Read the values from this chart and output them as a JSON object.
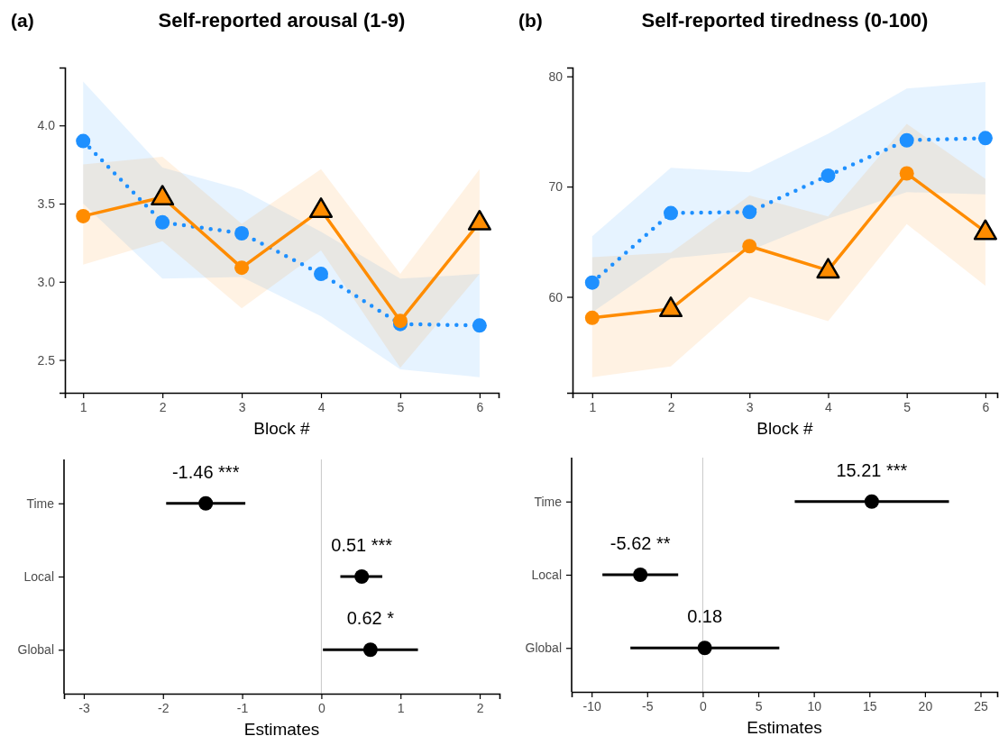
{
  "chart_data": [
    {
      "type": "line",
      "title": "Self-reported arousal (1-9)",
      "annotations": [
        "(a)"
      ],
      "xlabel": "Block #",
      "xlim": [
        0.77,
        6.24
      ],
      "xticks": [
        1,
        2,
        3,
        4,
        5,
        6
      ],
      "ylim": [
        2.29,
        4.37
      ],
      "yticks": [
        2.5,
        {
          "value": 3,
          "label": "3.0"
        },
        3.5,
        {
          "value": 4,
          "label": "4.0"
        }
      ],
      "series": [
        {
          "color": "#1e90ff",
          "x": [
            1,
            2,
            3,
            4,
            5,
            6
          ],
          "values": [
            3.9,
            3.38,
            3.31,
            3.05,
            2.73,
            2.72
          ],
          "lower": [
            3.5,
            3.02,
            3.03,
            2.78,
            2.44,
            2.39
          ],
          "upper": [
            4.28,
            3.73,
            3.59,
            3.32,
            3.02,
            3.05
          ],
          "marker": "circle",
          "line_style": "dotted"
        },
        {
          "color": "#ff8c00",
          "x": [
            1,
            2,
            3,
            4,
            5,
            6
          ],
          "values": [
            3.42,
            3.54,
            3.09,
            3.46,
            2.75,
            3.38
          ],
          "lower": [
            3.11,
            3.26,
            2.83,
            3.2,
            2.45,
            3.05
          ],
          "upper": [
            3.75,
            3.8,
            3.37,
            3.72,
            3.05,
            3.72
          ],
          "marker": "none",
          "line_style": "solid"
        },
        {
          "type": "scatter",
          "color": "#ff8c00",
          "x": [
            1,
            3,
            5
          ],
          "values": [
            3.42,
            3.09,
            2.75
          ],
          "marker": "circle"
        },
        {
          "type": "scatter",
          "color": "#ff8c00",
          "x": [
            2,
            4,
            6
          ],
          "values": [
            3.54,
            3.46,
            3.38
          ],
          "marker": "triangle"
        }
      ]
    },
    {
      "type": "line",
      "title": "Self-reported tiredness (0-100)",
      "annotations": [
        "(b)"
      ],
      "xlabel": "Block #",
      "xlim": [
        0.75,
        6.15
      ],
      "xticks": [
        1,
        2,
        3,
        4,
        5,
        6
      ],
      "ylim": [
        51.3,
        80.8
      ],
      "yticks": [
        60,
        70,
        80
      ],
      "series": [
        {
          "color": "#1e90ff",
          "x": [
            1,
            2,
            3,
            4,
            5,
            6
          ],
          "values": [
            61.3,
            67.6,
            67.7,
            71.0,
            74.2,
            74.4
          ],
          "lower": [
            58.6,
            63.5,
            64.2,
            67.1,
            69.5,
            69.3
          ],
          "upper": [
            65.5,
            71.7,
            71.3,
            74.8,
            78.9,
            79.5
          ],
          "marker": "circle",
          "line_style": "dotted"
        },
        {
          "color": "#ff8c00",
          "x": [
            1,
            2,
            3,
            4,
            5,
            6
          ],
          "values": [
            58.1,
            58.9,
            64.6,
            62.4,
            71.2,
            65.9
          ],
          "lower": [
            52.7,
            53.7,
            60.0,
            57.8,
            66.6,
            61.0
          ],
          "upper": [
            63.6,
            64.0,
            69.2,
            67.3,
            75.7,
            70.7
          ],
          "marker": "none",
          "line_style": "solid"
        },
        {
          "type": "scatter",
          "color": "#ff8c00",
          "x": [
            1,
            3,
            5
          ],
          "values": [
            58.1,
            64.6,
            71.2
          ],
          "marker": "circle"
        },
        {
          "type": "scatter",
          "color": "#ff8c00",
          "x": [
            2,
            4,
            6
          ],
          "values": [
            58.9,
            62.4,
            65.9
          ],
          "marker": "triangle"
        }
      ]
    },
    {
      "type": "scatter",
      "orientation": "horizontal",
      "xlabel": "Estimates",
      "categories": [
        "Time",
        "Local",
        "Global"
      ],
      "values": [
        -1.46,
        0.51,
        0.62
      ],
      "errors": [
        [
          -1.96,
          -0.96
        ],
        [
          0.24,
          0.77
        ],
        [
          0.02,
          1.22
        ]
      ],
      "value_labels": [
        "-1.46 ***",
        "0.51 ***",
        "0.62 *"
      ],
      "color": "#000000",
      "marker": "circle",
      "xlim": [
        -3.25,
        2.25
      ],
      "xticks": [
        -3,
        -2,
        -1,
        0,
        1,
        2
      ],
      "ref_lines": [
        {
          "axis": "x",
          "value": 0,
          "color": "#c8c8c8"
        }
      ]
    },
    {
      "type": "scatter",
      "orientation": "horizontal",
      "xlabel": "Estimates",
      "categories": [
        "Time",
        "Local",
        "Global"
      ],
      "values": [
        15.21,
        -5.62,
        0.18
      ],
      "errors": [
        [
          8.28,
          22.16
        ],
        [
          -9.03,
          -2.21
        ],
        [
          -6.51,
          6.89
        ]
      ],
      "value_labels": [
        "15.21 ***",
        "-5.62 **",
        "0.18"
      ],
      "color": "#000000",
      "marker": "circle",
      "xlim": [
        -11.8,
        26.5
      ],
      "xticks": [
        -10,
        -5,
        0,
        5,
        10,
        15,
        20,
        25
      ],
      "ref_lines": [
        {
          "axis": "x",
          "value": 0,
          "color": "#c8c8c8"
        }
      ]
    }
  ]
}
